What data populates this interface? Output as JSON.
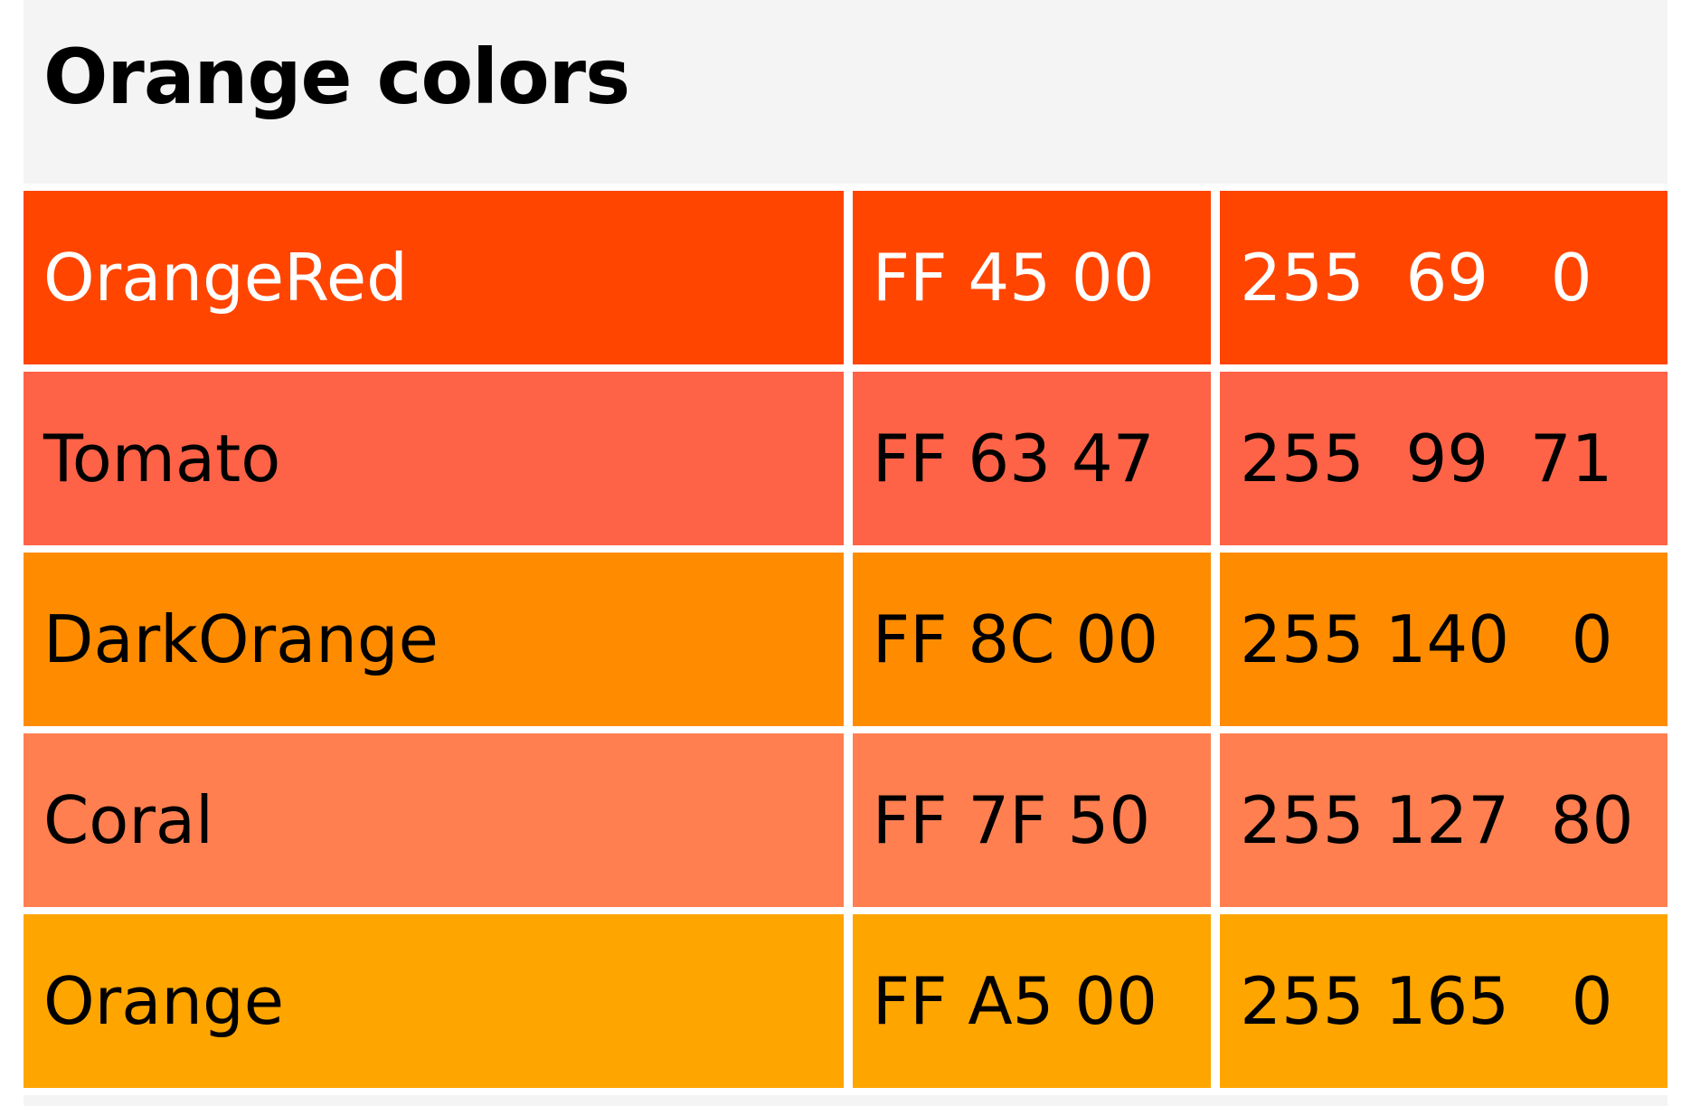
{
  "title": "Orange colors",
  "rows": [
    {
      "name": "OrangeRed",
      "hex": "FF 45 00",
      "rgb": "255  69   0",
      "color": "#FF4500",
      "text_color": "#FFFFFF"
    },
    {
      "name": "Tomato",
      "hex": "FF 63 47",
      "rgb": "255  99  71",
      "color": "#FF6347",
      "text_color": "#000000"
    },
    {
      "name": "DarkOrange",
      "hex": "FF 8C 00",
      "rgb": "255 140   0",
      "color": "#FF8C00",
      "text_color": "#000000"
    },
    {
      "name": "Coral",
      "hex": "FF 7F 50",
      "rgb": "255 127  80",
      "color": "#FF7F50",
      "text_color": "#000000"
    },
    {
      "name": "Orange",
      "hex": "FF A5 00",
      "rgb": "255 165   0",
      "color": "#FFA500",
      "text_color": "#000000"
    }
  ]
}
